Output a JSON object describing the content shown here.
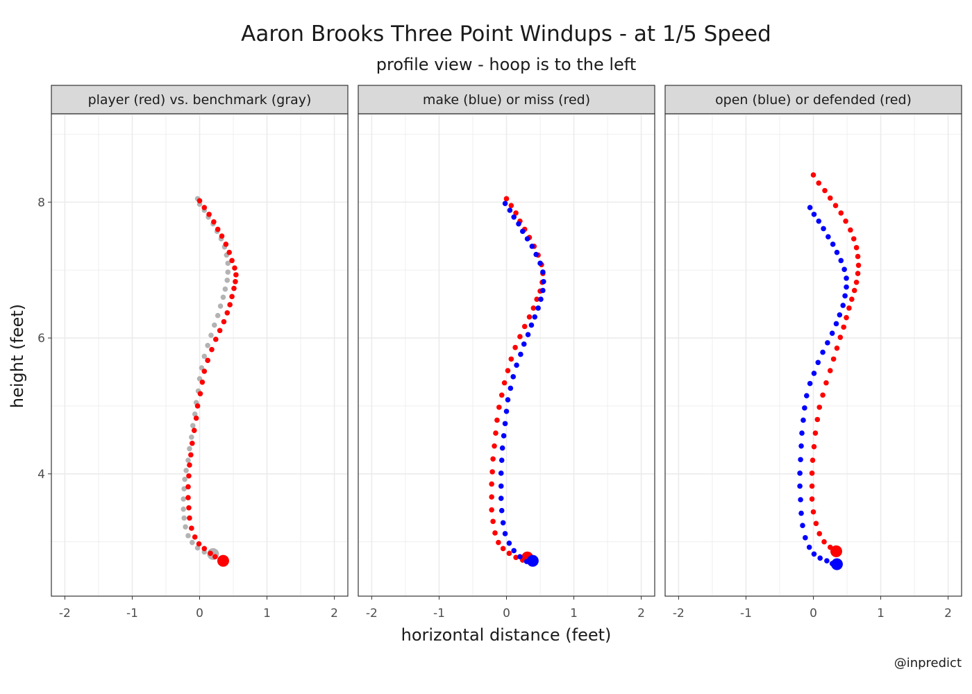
{
  "title": "Aaron Brooks Three Point Windups - at 1/5 Speed",
  "subtitle": "profile view - hoop is to the left",
  "xlabel": "horizontal distance (feet)",
  "ylabel": "height (feet)",
  "caption": "@inpredict",
  "colors": {
    "red": "#ff0000",
    "blue": "#0000ff",
    "gray": "#b3b3b3",
    "strip_bg": "#d9d9d9",
    "grid": "#ebebeb"
  },
  "chart_data": [
    {
      "type": "scatter",
      "panel_title": "player (red) vs. benchmark (gray)",
      "xlim": [
        -2.2,
        2.2
      ],
      "ylim": [
        2.2,
        9.3
      ],
      "xticks": [
        -2,
        -1,
        0,
        1,
        2
      ],
      "xtick_labels": [
        "-2",
        "-1",
        "0",
        "1",
        "2"
      ],
      "yticks": [
        4,
        6,
        8
      ],
      "ytick_labels": [
        "4",
        "6",
        "8"
      ],
      "series": [
        {
          "color": "gray",
          "points": [
            [
              -0.03,
              8.05
            ],
            [
              0.0,
              7.97
            ],
            [
              0.07,
              7.88
            ],
            [
              0.13,
              7.78
            ],
            [
              0.2,
              7.68
            ],
            [
              0.26,
              7.57
            ],
            [
              0.32,
              7.46
            ],
            [
              0.37,
              7.34
            ],
            [
              0.4,
              7.22
            ],
            [
              0.42,
              7.1
            ],
            [
              0.42,
              6.97
            ],
            [
              0.41,
              6.85
            ],
            [
              0.38,
              6.72
            ],
            [
              0.35,
              6.6
            ],
            [
              0.31,
              6.47
            ],
            [
              0.27,
              6.33
            ],
            [
              0.22,
              6.19
            ],
            [
              0.17,
              6.04
            ],
            [
              0.12,
              5.89
            ],
            [
              0.07,
              5.73
            ],
            [
              0.03,
              5.56
            ],
            [
              0.0,
              5.4
            ],
            [
              -0.02,
              5.22
            ],
            [
              -0.05,
              5.05
            ],
            [
              -0.07,
              4.88
            ],
            [
              -0.1,
              4.71
            ],
            [
              -0.12,
              4.54
            ],
            [
              -0.15,
              4.37
            ],
            [
              -0.17,
              4.2
            ],
            [
              -0.2,
              4.05
            ],
            [
              -0.22,
              3.92
            ],
            [
              -0.23,
              3.78
            ],
            [
              -0.24,
              3.63
            ],
            [
              -0.24,
              3.48
            ],
            [
              -0.23,
              3.35
            ],
            [
              -0.21,
              3.22
            ],
            [
              -0.17,
              3.09
            ],
            [
              -0.11,
              2.99
            ],
            [
              -0.03,
              2.91
            ],
            [
              0.07,
              2.85
            ],
            [
              0.19,
              2.81
            ]
          ],
          "end_point": [
            0.2,
            2.82
          ]
        },
        {
          "color": "red",
          "points": [
            [
              0.0,
              8.02
            ],
            [
              0.07,
              7.92
            ],
            [
              0.14,
              7.82
            ],
            [
              0.21,
              7.71
            ],
            [
              0.27,
              7.6
            ],
            [
              0.33,
              7.5
            ],
            [
              0.39,
              7.38
            ],
            [
              0.44,
              7.26
            ],
            [
              0.48,
              7.14
            ],
            [
              0.52,
              7.03
            ],
            [
              0.54,
              6.93
            ],
            [
              0.53,
              6.83
            ],
            [
              0.51,
              6.73
            ],
            [
              0.48,
              6.61
            ],
            [
              0.45,
              6.49
            ],
            [
              0.41,
              6.37
            ],
            [
              0.36,
              6.24
            ],
            [
              0.3,
              6.11
            ],
            [
              0.24,
              5.98
            ],
            [
              0.18,
              5.83
            ],
            [
              0.12,
              5.67
            ],
            [
              0.07,
              5.51
            ],
            [
              0.04,
              5.35
            ],
            [
              0.01,
              5.18
            ],
            [
              -0.03,
              5.0
            ],
            [
              -0.05,
              4.82
            ],
            [
              -0.08,
              4.64
            ],
            [
              -0.11,
              4.45
            ],
            [
              -0.13,
              4.28
            ],
            [
              -0.15,
              4.13
            ],
            [
              -0.16,
              3.97
            ],
            [
              -0.17,
              3.81
            ],
            [
              -0.17,
              3.65
            ],
            [
              -0.16,
              3.5
            ],
            [
              -0.15,
              3.35
            ],
            [
              -0.12,
              3.2
            ],
            [
              -0.07,
              3.07
            ],
            [
              -0.01,
              2.97
            ],
            [
              0.07,
              2.9
            ],
            [
              0.16,
              2.83
            ],
            [
              0.23,
              2.78
            ]
          ],
          "end_point": [
            0.35,
            2.72
          ]
        }
      ]
    },
    {
      "type": "scatter",
      "panel_title": "make (blue) or miss (red)",
      "xlim": [
        -2.2,
        2.2
      ],
      "ylim": [
        2.2,
        9.3
      ],
      "xticks": [
        -2,
        -1,
        0,
        1,
        2
      ],
      "xtick_labels": [
        "-2",
        "-1",
        "0",
        "1",
        "2"
      ],
      "yticks": [
        4,
        6,
        8
      ],
      "ytick_labels": [
        "4",
        "6",
        "8"
      ],
      "series": [
        {
          "color": "red",
          "points": [
            [
              0.0,
              8.05
            ],
            [
              0.07,
              7.95
            ],
            [
              0.14,
              7.84
            ],
            [
              0.2,
              7.72
            ],
            [
              0.27,
              7.6
            ],
            [
              0.34,
              7.48
            ],
            [
              0.41,
              7.35
            ],
            [
              0.47,
              7.22
            ],
            [
              0.52,
              7.08
            ],
            [
              0.54,
              6.95
            ],
            [
              0.53,
              6.82
            ],
            [
              0.5,
              6.69
            ],
            [
              0.45,
              6.57
            ],
            [
              0.4,
              6.44
            ],
            [
              0.34,
              6.31
            ],
            [
              0.27,
              6.17
            ],
            [
              0.2,
              6.02
            ],
            [
              0.13,
              5.86
            ],
            [
              0.07,
              5.69
            ],
            [
              0.02,
              5.52
            ],
            [
              -0.03,
              5.34
            ],
            [
              -0.07,
              5.16
            ],
            [
              -0.11,
              4.98
            ],
            [
              -0.14,
              4.79
            ],
            [
              -0.16,
              4.6
            ],
            [
              -0.18,
              4.41
            ],
            [
              -0.2,
              4.22
            ],
            [
              -0.21,
              4.03
            ],
            [
              -0.22,
              3.85
            ],
            [
              -0.22,
              3.66
            ],
            [
              -0.22,
              3.47
            ],
            [
              -0.2,
              3.3
            ],
            [
              -0.17,
              3.13
            ],
            [
              -0.12,
              2.99
            ],
            [
              -0.05,
              2.9
            ],
            [
              0.04,
              2.83
            ],
            [
              0.14,
              2.77
            ],
            [
              0.24,
              2.73
            ]
          ],
          "end_point": [
            0.31,
            2.77
          ]
        },
        {
          "color": "blue",
          "points": [
            [
              -0.02,
              7.98
            ],
            [
              0.05,
              7.88
            ],
            [
              0.11,
              7.78
            ],
            [
              0.18,
              7.68
            ],
            [
              0.24,
              7.57
            ],
            [
              0.31,
              7.46
            ],
            [
              0.38,
              7.35
            ],
            [
              0.44,
              7.23
            ],
            [
              0.5,
              7.1
            ],
            [
              0.54,
              6.97
            ],
            [
              0.55,
              6.83
            ],
            [
              0.54,
              6.7
            ],
            [
              0.51,
              6.57
            ],
            [
              0.47,
              6.44
            ],
            [
              0.42,
              6.31
            ],
            [
              0.37,
              6.19
            ],
            [
              0.32,
              6.05
            ],
            [
              0.26,
              5.91
            ],
            [
              0.21,
              5.76
            ],
            [
              0.15,
              5.6
            ],
            [
              0.1,
              5.43
            ],
            [
              0.06,
              5.26
            ],
            [
              0.02,
              5.09
            ],
            [
              0.0,
              4.92
            ],
            [
              -0.02,
              4.74
            ],
            [
              -0.04,
              4.56
            ],
            [
              -0.06,
              4.38
            ],
            [
              -0.07,
              4.2
            ],
            [
              -0.08,
              4.01
            ],
            [
              -0.08,
              3.82
            ],
            [
              -0.08,
              3.64
            ],
            [
              -0.07,
              3.46
            ],
            [
              -0.05,
              3.28
            ],
            [
              -0.02,
              3.12
            ],
            [
              0.04,
              2.98
            ],
            [
              0.11,
              2.87
            ],
            [
              0.2,
              2.78
            ],
            [
              0.3,
              2.71
            ]
          ],
          "end_point": [
            0.39,
            2.72
          ]
        }
      ]
    },
    {
      "type": "scatter",
      "panel_title": "open (blue) or defended (red)",
      "xlim": [
        -2.2,
        2.2
      ],
      "ylim": [
        2.2,
        9.3
      ],
      "xticks": [
        -2,
        -1,
        0,
        1,
        2
      ],
      "xtick_labels": [
        "-2",
        "-1",
        "0",
        "1",
        "2"
      ],
      "yticks": [
        4,
        6,
        8
      ],
      "ytick_labels": [
        "4",
        "6",
        "8"
      ],
      "series": [
        {
          "color": "red",
          "points": [
            [
              0.0,
              8.4
            ],
            [
              0.08,
              8.28
            ],
            [
              0.17,
              8.17
            ],
            [
              0.25,
              8.06
            ],
            [
              0.33,
              7.95
            ],
            [
              0.41,
              7.84
            ],
            [
              0.48,
              7.72
            ],
            [
              0.55,
              7.59
            ],
            [
              0.6,
              7.46
            ],
            [
              0.64,
              7.33
            ],
            [
              0.66,
              7.2
            ],
            [
              0.67,
              7.07
            ],
            [
              0.66,
              6.95
            ],
            [
              0.64,
              6.82
            ],
            [
              0.61,
              6.7
            ],
            [
              0.57,
              6.57
            ],
            [
              0.53,
              6.44
            ],
            [
              0.49,
              6.3
            ],
            [
              0.45,
              6.16
            ],
            [
              0.4,
              6.01
            ],
            [
              0.35,
              5.85
            ],
            [
              0.3,
              5.69
            ],
            [
              0.25,
              5.52
            ],
            [
              0.19,
              5.34
            ],
            [
              0.14,
              5.16
            ],
            [
              0.09,
              4.98
            ],
            [
              0.06,
              4.8
            ],
            [
              0.03,
              4.6
            ],
            [
              0.01,
              4.4
            ],
            [
              -0.01,
              4.2
            ],
            [
              -0.02,
              4.01
            ],
            [
              -0.02,
              3.82
            ],
            [
              -0.02,
              3.63
            ],
            [
              0.0,
              3.44
            ],
            [
              0.04,
              3.27
            ],
            [
              0.09,
              3.12
            ],
            [
              0.16,
              3.0
            ],
            [
              0.25,
              2.92
            ]
          ],
          "end_point": [
            0.34,
            2.86
          ]
        },
        {
          "color": "blue",
          "points": [
            [
              -0.05,
              7.92
            ],
            [
              0.01,
              7.82
            ],
            [
              0.08,
              7.72
            ],
            [
              0.15,
              7.61
            ],
            [
              0.22,
              7.49
            ],
            [
              0.29,
              7.38
            ],
            [
              0.35,
              7.26
            ],
            [
              0.41,
              7.14
            ],
            [
              0.46,
              7.01
            ],
            [
              0.49,
              6.88
            ],
            [
              0.49,
              6.75
            ],
            [
              0.47,
              6.62
            ],
            [
              0.44,
              6.48
            ],
            [
              0.39,
              6.34
            ],
            [
              0.34,
              6.21
            ],
            [
              0.28,
              6.07
            ],
            [
              0.21,
              5.93
            ],
            [
              0.14,
              5.79
            ],
            [
              0.07,
              5.64
            ],
            [
              0.01,
              5.48
            ],
            [
              -0.05,
              5.33
            ],
            [
              -0.1,
              5.15
            ],
            [
              -0.13,
              4.97
            ],
            [
              -0.15,
              4.79
            ],
            [
              -0.17,
              4.6
            ],
            [
              -0.18,
              4.41
            ],
            [
              -0.19,
              4.21
            ],
            [
              -0.2,
              4.01
            ],
            [
              -0.2,
              3.82
            ],
            [
              -0.19,
              3.62
            ],
            [
              -0.18,
              3.42
            ],
            [
              -0.16,
              3.24
            ],
            [
              -0.12,
              3.06
            ],
            [
              -0.06,
              2.92
            ],
            [
              0.01,
              2.82
            ],
            [
              0.1,
              2.76
            ],
            [
              0.2,
              2.72
            ],
            [
              0.28,
              2.68
            ]
          ],
          "end_point": [
            0.35,
            2.67
          ]
        }
      ]
    }
  ]
}
